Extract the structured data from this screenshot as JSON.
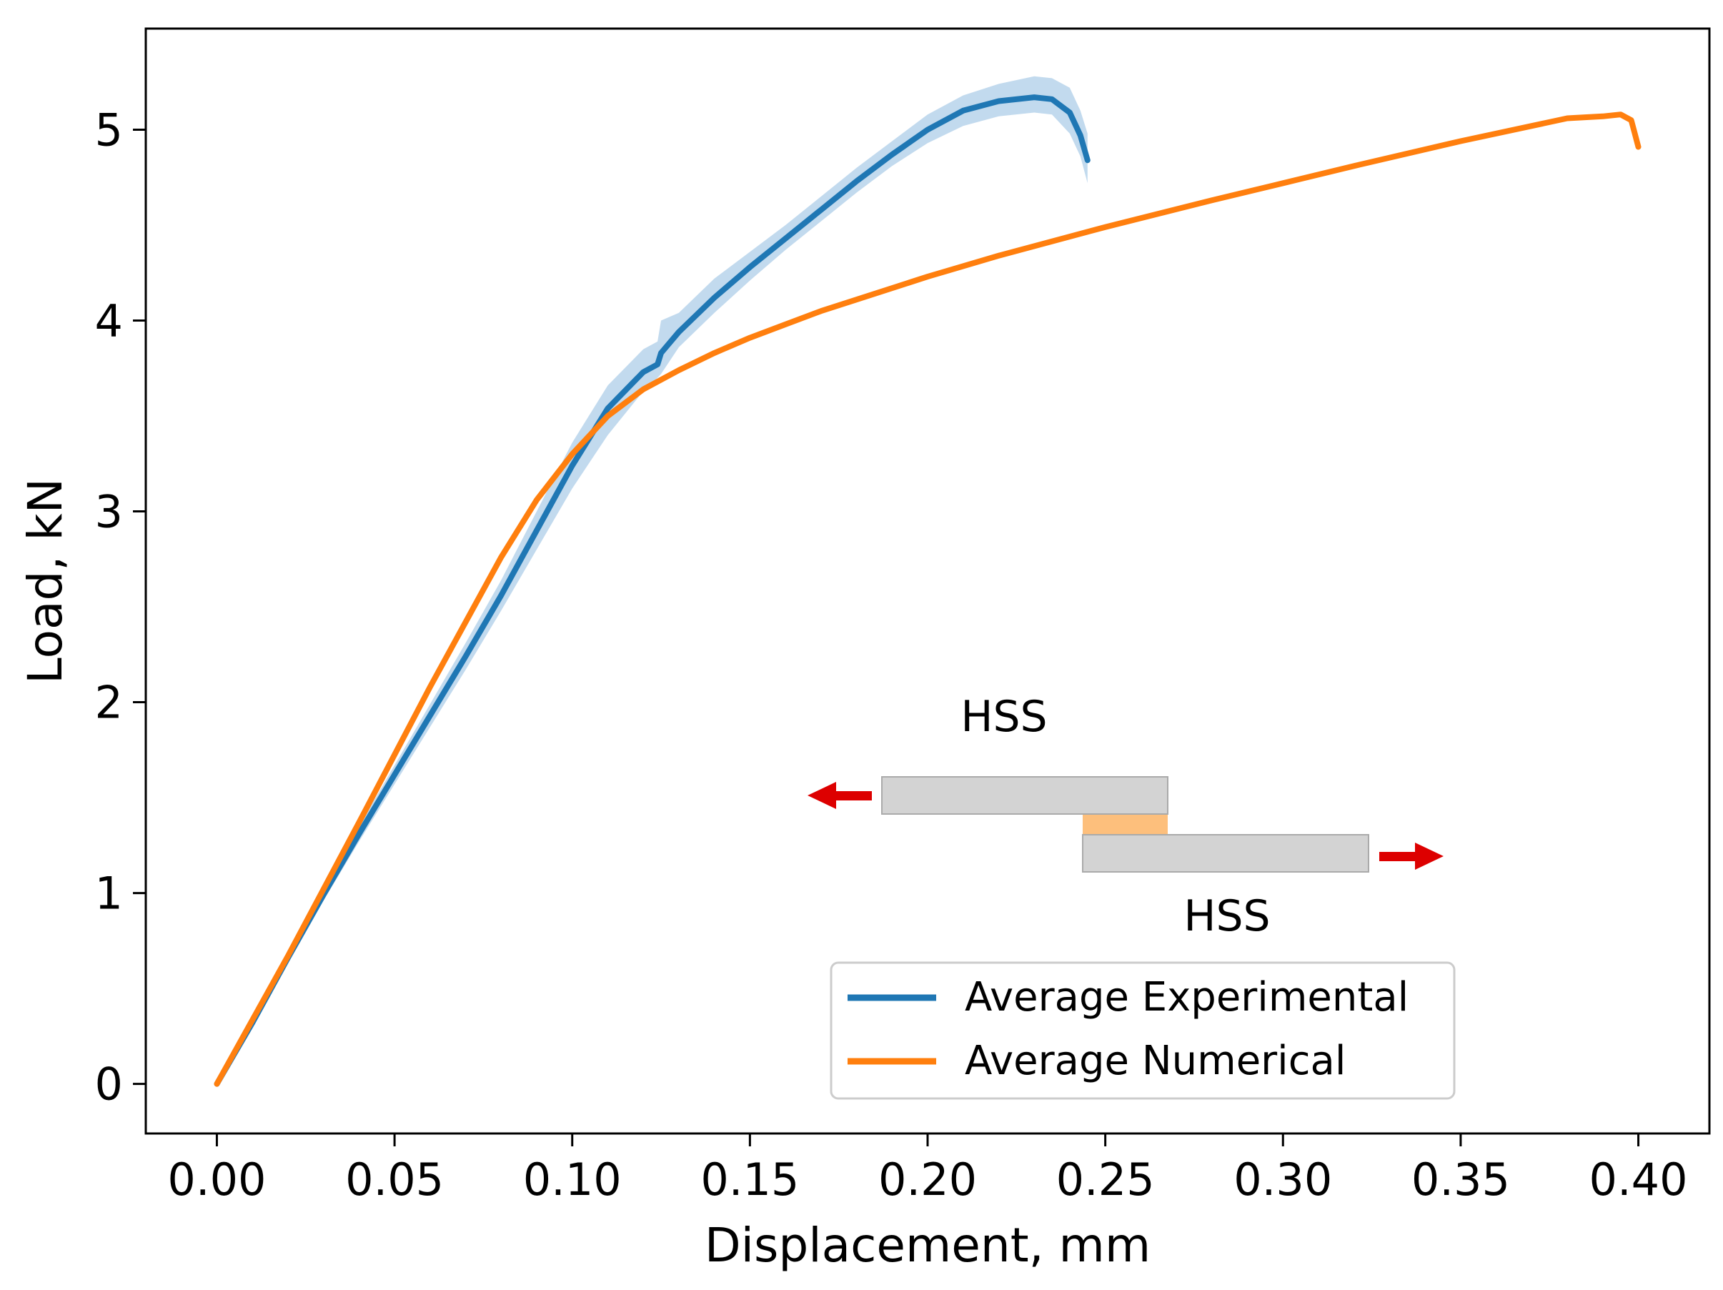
{
  "chart_data": {
    "type": "line",
    "title": "",
    "xlabel": "Displacement, mm",
    "ylabel": "Load, kN",
    "xlim": [
      -0.02,
      0.42
    ],
    "ylim": [
      -0.26,
      5.53
    ],
    "xticks": [
      0.0,
      0.05,
      0.1,
      0.15,
      0.2,
      0.25,
      0.3,
      0.35,
      0.4
    ],
    "xtick_labels": [
      "0.00",
      "0.05",
      "0.10",
      "0.15",
      "0.20",
      "0.25",
      "0.30",
      "0.35",
      "0.40"
    ],
    "yticks": [
      0,
      1,
      2,
      3,
      4,
      5
    ],
    "ytick_labels": [
      "0",
      "1",
      "2",
      "3",
      "4",
      "5"
    ],
    "grid": false,
    "legend_position": "lower-right",
    "series": [
      {
        "name": "Average Experimental",
        "color": "#1f77b4",
        "band_color": "#aecde8",
        "x": [
          0,
          0.01,
          0.02,
          0.03,
          0.04,
          0.05,
          0.06,
          0.07,
          0.08,
          0.09,
          0.1,
          0.11,
          0.12,
          0.124,
          0.125,
          0.13,
          0.14,
          0.15,
          0.16,
          0.17,
          0.18,
          0.19,
          0.2,
          0.21,
          0.22,
          0.23,
          0.235,
          0.24,
          0.243,
          0.245
        ],
        "y": [
          0,
          0.32,
          0.66,
          0.99,
          1.31,
          1.62,
          1.93,
          2.24,
          2.56,
          2.9,
          3.24,
          3.54,
          3.73,
          3.77,
          3.83,
          3.94,
          4.12,
          4.28,
          4.43,
          4.58,
          4.73,
          4.87,
          5.0,
          5.1,
          5.15,
          5.17,
          5.16,
          5.09,
          4.97,
          4.84
        ],
        "band_lower": [
          0,
          0.31,
          0.64,
          0.96,
          1.27,
          1.57,
          1.87,
          2.17,
          2.48,
          2.8,
          3.12,
          3.4,
          3.63,
          3.7,
          3.72,
          3.86,
          4.04,
          4.21,
          4.37,
          4.52,
          4.67,
          4.81,
          4.93,
          5.02,
          5.07,
          5.09,
          5.08,
          4.98,
          4.86,
          4.72
        ],
        "band_upper": [
          0,
          0.33,
          0.68,
          1.02,
          1.35,
          1.67,
          1.99,
          2.31,
          2.64,
          3.0,
          3.36,
          3.66,
          3.85,
          3.89,
          4.0,
          4.04,
          4.22,
          4.36,
          4.5,
          4.65,
          4.8,
          4.94,
          5.08,
          5.18,
          5.24,
          5.28,
          5.27,
          5.22,
          5.1,
          4.98
        ]
      },
      {
        "name": "Average Numerical",
        "color": "#ff7f0e",
        "x": [
          0,
          0.02,
          0.04,
          0.06,
          0.08,
          0.09,
          0.1,
          0.11,
          0.12,
          0.13,
          0.14,
          0.15,
          0.16,
          0.17,
          0.18,
          0.2,
          0.22,
          0.25,
          0.28,
          0.3,
          0.32,
          0.35,
          0.38,
          0.39,
          0.395,
          0.398,
          0.399,
          0.4
        ],
        "y": [
          0,
          0.67,
          1.37,
          2.08,
          2.76,
          3.06,
          3.3,
          3.5,
          3.64,
          3.74,
          3.83,
          3.91,
          3.98,
          4.05,
          4.11,
          4.23,
          4.34,
          4.49,
          4.63,
          4.72,
          4.81,
          4.94,
          5.06,
          5.07,
          5.08,
          5.05,
          4.98,
          4.91
        ]
      }
    ]
  },
  "inset": {
    "top_label": "HSS",
    "bottom_label": "HSS",
    "plate_color": "#d3d3d3",
    "adhesive_color": "#fdbf7c",
    "arrow_color": "#dd0000"
  }
}
